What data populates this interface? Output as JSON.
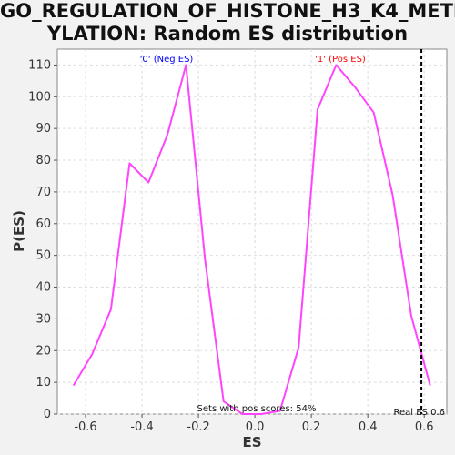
{
  "title_lines": [
    "GO_REGULATION_OF_HISTONE_H3_K4_METH",
    "YLATION: Random ES distribution"
  ],
  "chart_data": {
    "type": "line",
    "title": "GO_REGULATION_OF_HISTONE_H3_K4_METHYLATION: Random ES distribution",
    "xlabel": "ES",
    "ylabel": "P(ES)",
    "xlim": [
      -0.7,
      0.68
    ],
    "ylim": [
      0,
      115
    ],
    "x_ticks": [
      -0.6,
      -0.4,
      -0.2,
      0.0,
      0.2,
      0.4,
      0.6
    ],
    "x_tick_labels": [
      "-0.6",
      "-0.4",
      "-0.2",
      "0.0",
      "0.2",
      "0.4",
      "0.6"
    ],
    "y_ticks": [
      0,
      10,
      20,
      30,
      40,
      50,
      60,
      70,
      80,
      90,
      100,
      110
    ],
    "y_tick_labels": [
      "0",
      "10",
      "20",
      "30",
      "40",
      "50",
      "60",
      "70",
      "80",
      "90",
      "100",
      "110"
    ],
    "grid": true,
    "series": [
      {
        "color": "#ff44ff",
        "x": [
          -0.643,
          -0.576,
          -0.51,
          -0.444,
          -0.377,
          -0.31,
          -0.244,
          -0.177,
          -0.111,
          -0.044,
          0.022,
          0.089,
          0.155,
          0.222,
          0.288,
          0.355,
          0.421,
          0.488,
          0.554,
          0.621
        ],
        "y": [
          9,
          19,
          33,
          79,
          73,
          88,
          110,
          49,
          4,
          0,
          0,
          1,
          21,
          96,
          110,
          103,
          95,
          69,
          31,
          9
        ]
      }
    ],
    "real_es": 0.59,
    "annotations": {
      "neg": "'0' (Neg ES)",
      "pos": "'1' (Pos ES)",
      "sets": "Sets with pos scores: 54%",
      "real_es": "Real ES 0.6"
    },
    "colors": {
      "neg": "#0000ff",
      "pos": "#ff0000",
      "line": "#ff44ff",
      "marker": "#000000"
    }
  }
}
